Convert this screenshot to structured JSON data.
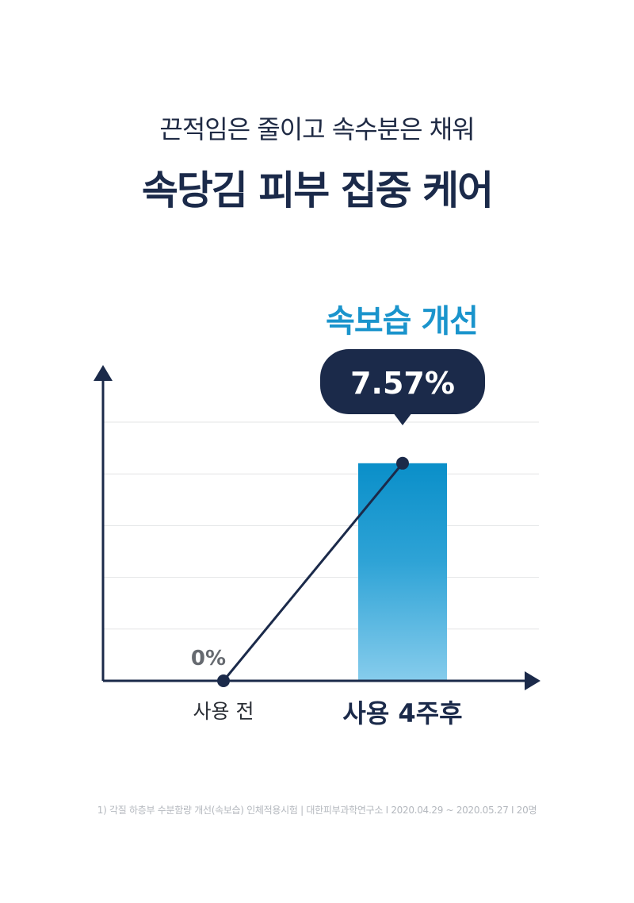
{
  "header": {
    "subtitle": "끈적임은 줄이고 속수분은 채워",
    "title": "속당김 피부 집중 케어"
  },
  "chart_data": {
    "type": "bar",
    "title": "속보습 개선",
    "categories": [
      "사용 전",
      "사용 4주후"
    ],
    "values": [
      0,
      7.57
    ],
    "value_labels": [
      "0%",
      "7.57%"
    ],
    "unit": "%",
    "ylim": [
      0,
      9
    ],
    "grid": true,
    "gridline_count": 5,
    "colors": {
      "axis": "#1b2a4a",
      "grid": "#e3e4e6",
      "bar_top": "#0a8fc9",
      "bar_mid": "#2ea3d6",
      "bar_bottom": "#86ccec",
      "accent_title": "#1a94cc",
      "callout_bg": "#1b2a4a",
      "callout_text": "#ffffff",
      "zero_label": "#666a70"
    }
  },
  "footnote": "1) 각질 하층부 수분함량 개선(속보습) 인체적용시험 | 대한피부과학연구소 I 2020.04.29 ~ 2020.05.27 I 20명"
}
